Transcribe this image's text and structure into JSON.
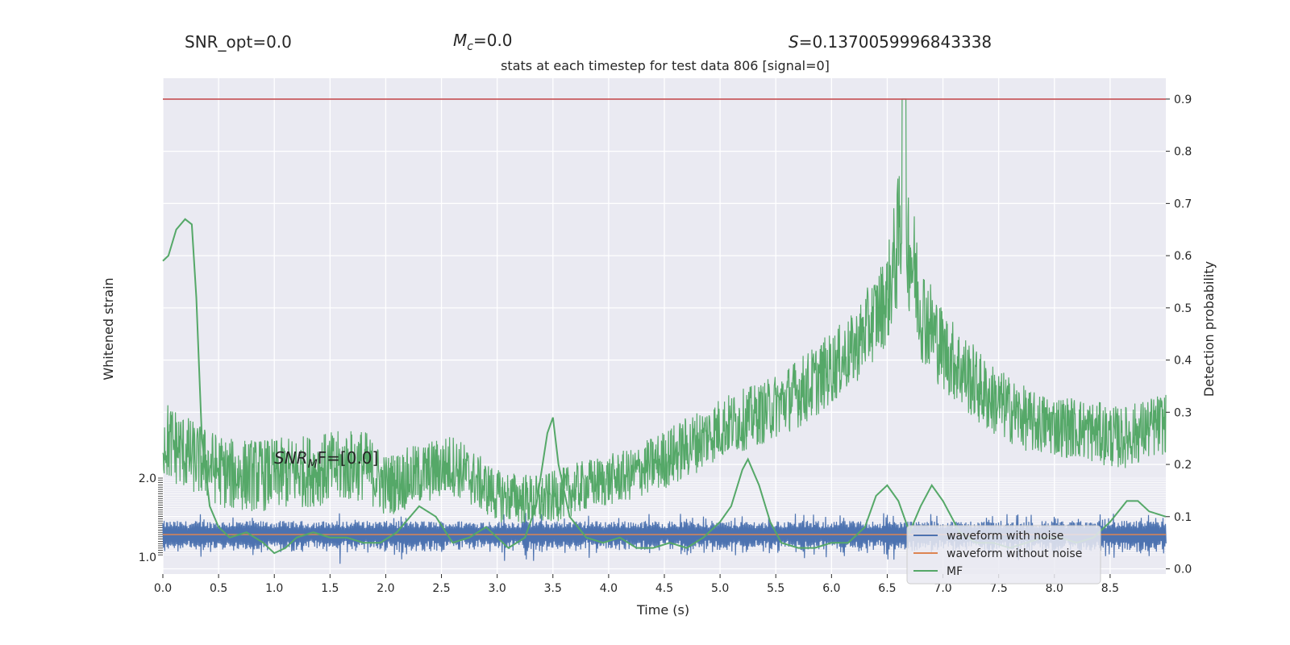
{
  "header": {
    "snr_opt": "SNR_opt=0.0",
    "mc_symbol": "M",
    "mc_sub": "c",
    "mc_value": "=0.0",
    "s_symbol": "S",
    "s_value": "=0.1370059996843338",
    "title": "stats at each timestep for test data 806 [signal=0]"
  },
  "annotation": {
    "snr_mf_main": "SNR",
    "snr_mf_sub": "M",
    "snr_mf_rest": "F=[0.0]"
  },
  "chart_data": {
    "type": "line",
    "title": "stats at each timestep for test data 806 [signal=0]",
    "xlabel": "Time (s)",
    "ylabel_left": "Whitened strain",
    "ylabel_right": "Detection probability",
    "xlim": [
      0.0,
      9.0
    ],
    "ylim_right": [
      -0.01,
      0.94
    ],
    "x_ticks": [
      "0.0",
      "0.5",
      "1.0",
      "1.5",
      "2.0",
      "2.5",
      "3.0",
      "3.5",
      "4.0",
      "4.5",
      "5.0",
      "5.5",
      "6.0",
      "6.5",
      "7.0",
      "7.5",
      "8.0",
      "8.5"
    ],
    "y_right_ticks": [
      "0.0",
      "0.1",
      "0.2",
      "0.3",
      "0.4",
      "0.5",
      "0.6",
      "0.7",
      "0.8",
      "0.9"
    ],
    "left_tick_top": "2.0",
    "left_tick_bottom": "1.0",
    "threshold": 0.9,
    "grid": true,
    "legend_position": "lower-right",
    "legend": [
      "waveform with noise",
      "waveform without noise",
      "MF"
    ],
    "colors": {
      "noise": "#4c72b0",
      "clean": "#dd8452",
      "prob": "#55a868",
      "threshold": "#c44e52",
      "background": "#eaeaf2"
    },
    "detection_prob_envelope": {
      "x": [
        0.0,
        0.3,
        0.6,
        1.0,
        1.4,
        1.8,
        2.0,
        2.3,
        2.6,
        3.0,
        3.4,
        3.8,
        4.2,
        4.6,
        5.0,
        5.4,
        5.8,
        6.2,
        6.5,
        6.65,
        6.8,
        7.0,
        7.4,
        7.8,
        8.2,
        8.6,
        9.0
      ],
      "center": [
        0.25,
        0.21,
        0.18,
        0.18,
        0.19,
        0.2,
        0.16,
        0.18,
        0.2,
        0.14,
        0.13,
        0.16,
        0.18,
        0.22,
        0.27,
        0.3,
        0.35,
        0.42,
        0.52,
        0.68,
        0.5,
        0.42,
        0.33,
        0.28,
        0.27,
        0.25,
        0.28
      ],
      "spread": [
        0.08,
        0.07,
        0.07,
        0.07,
        0.07,
        0.07,
        0.06,
        0.06,
        0.06,
        0.05,
        0.05,
        0.05,
        0.05,
        0.06,
        0.06,
        0.06,
        0.07,
        0.07,
        0.09,
        0.15,
        0.1,
        0.08,
        0.07,
        0.06,
        0.06,
        0.06,
        0.06
      ]
    },
    "mf_curve": {
      "x": [
        0.0,
        0.05,
        0.12,
        0.2,
        0.26,
        0.3,
        0.35,
        0.42,
        0.5,
        0.6,
        0.75,
        0.9,
        1.0,
        1.1,
        1.2,
        1.35,
        1.5,
        1.65,
        1.8,
        1.95,
        2.1,
        2.3,
        2.45,
        2.6,
        2.75,
        2.9,
        3.0,
        3.1,
        3.25,
        3.35,
        3.45,
        3.5,
        3.55,
        3.65,
        3.8,
        3.95,
        4.1,
        4.25,
        4.4,
        4.55,
        4.7,
        4.85,
        5.0,
        5.1,
        5.2,
        5.25,
        5.35,
        5.45,
        5.55,
        5.7,
        5.85,
        6.0,
        6.15,
        6.3,
        6.4,
        6.5,
        6.6,
        6.7,
        6.8,
        6.9,
        7.0,
        7.15,
        7.3,
        7.45,
        7.6,
        7.75,
        7.9,
        8.05,
        8.2,
        8.35,
        8.5,
        8.65,
        8.75,
        8.85,
        9.0
      ],
      "y": [
        0.59,
        0.6,
        0.65,
        0.67,
        0.66,
        0.52,
        0.25,
        0.12,
        0.08,
        0.06,
        0.07,
        0.05,
        0.03,
        0.04,
        0.06,
        0.07,
        0.06,
        0.06,
        0.05,
        0.05,
        0.07,
        0.12,
        0.1,
        0.05,
        0.06,
        0.08,
        0.06,
        0.04,
        0.06,
        0.12,
        0.26,
        0.29,
        0.2,
        0.1,
        0.06,
        0.05,
        0.06,
        0.04,
        0.04,
        0.05,
        0.04,
        0.06,
        0.09,
        0.12,
        0.19,
        0.21,
        0.16,
        0.09,
        0.05,
        0.04,
        0.04,
        0.05,
        0.05,
        0.08,
        0.14,
        0.16,
        0.13,
        0.07,
        0.12,
        0.16,
        0.13,
        0.07,
        0.05,
        0.05,
        0.04,
        0.05,
        0.06,
        0.06,
        0.05,
        0.06,
        0.09,
        0.13,
        0.13,
        0.11,
        0.1
      ]
    }
  }
}
